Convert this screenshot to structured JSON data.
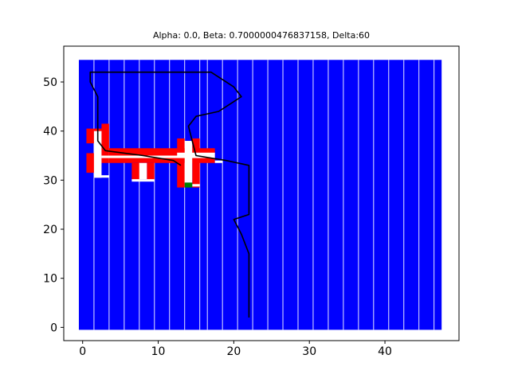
{
  "chart_data": {
    "type": "heatmap",
    "title": "Alpha: 0.0, Beta: 0.7000000476837158, Delta:60",
    "xlabel": "",
    "ylabel": "",
    "xlim": [
      -2.5,
      49.8
    ],
    "ylim": [
      -2.7,
      57.3
    ],
    "xticks": [
      0,
      10,
      20,
      30,
      40
    ],
    "yticks": [
      0,
      10,
      20,
      30,
      40,
      50
    ],
    "grid": false,
    "colors": {
      "free": "#0000ff",
      "obstacle": "#ff0000",
      "visited": "#ffffff",
      "goal": "#008000",
      "path": "#000000",
      "column_gap": "#ffffff"
    },
    "field": {
      "x_range": [
        -0.5,
        47.5
      ],
      "y_range": [
        -0.5,
        54.5
      ]
    },
    "column_gaps_x": [
      1.5,
      3.5,
      5.5,
      7.5,
      9.5,
      11.5,
      13.5,
      15.5,
      16.5,
      18.5,
      20.5,
      22.5,
      24.5,
      26.5,
      28.5,
      30.5,
      32.5,
      34.5,
      36.5,
      38.5,
      40.5,
      42.5,
      44.5,
      46.5
    ],
    "obstacles": [
      {
        "x": [
          0.5,
          1.5
        ],
        "y": [
          37.5,
          40.5
        ]
      },
      {
        "x": [
          0.5,
          1.5
        ],
        "y": [
          31.5,
          35.5
        ]
      },
      {
        "x": [
          1.5,
          2.5
        ],
        "y": [
          30.5,
          40.5
        ]
      },
      {
        "x": [
          2.5,
          3.5
        ],
        "y": [
          33.5,
          41.5
        ]
      },
      {
        "x": [
          3.5,
          17.5
        ],
        "y": [
          33.5,
          36.5
        ]
      },
      {
        "x": [
          6.5,
          7.5
        ],
        "y": [
          30.0,
          33.5
        ]
      },
      {
        "x": [
          8.5,
          9.5
        ],
        "y": [
          30.0,
          33.5
        ]
      },
      {
        "x": [
          12.5,
          13.5
        ],
        "y": [
          28.5,
          38.5
        ]
      },
      {
        "x": [
          14.5,
          15.5
        ],
        "y": [
          28.5,
          38.5
        ]
      }
    ],
    "visited_cells": [
      {
        "x": [
          1.5,
          2.5
        ],
        "y": [
          30.5,
          40.0
        ]
      },
      {
        "x": [
          1.5,
          3.5
        ],
        "y": [
          30.5,
          31.0
        ]
      },
      {
        "x": [
          6.5,
          9.5
        ],
        "y": [
          29.7,
          30.2
        ]
      },
      {
        "x": [
          7.5,
          8.5
        ],
        "y": [
          30.2,
          33.5
        ]
      },
      {
        "x": [
          2.5,
          17.5
        ],
        "y": [
          34.5,
          35.0
        ]
      },
      {
        "x": [
          13.5,
          14.5
        ],
        "y": [
          29.5,
          38.0
        ]
      },
      {
        "x": [
          12.5,
          17.5
        ],
        "y": [
          35.0,
          35.6
        ]
      },
      {
        "x": [
          14.5,
          15.5
        ],
        "y": [
          28.7,
          29.2
        ]
      },
      {
        "x": [
          17.5,
          18.5
        ],
        "y": [
          33.5,
          34.0
        ]
      }
    ],
    "goal_cell": {
      "x": [
        13.5,
        14.5
      ],
      "y": [
        28.5,
        29.5
      ]
    },
    "path": [
      [
        22.0,
        2.0
      ],
      [
        22.0,
        15.0
      ],
      [
        21.0,
        19.0
      ],
      [
        20.0,
        22.0
      ],
      [
        22.0,
        23.0
      ],
      [
        22.0,
        33.0
      ],
      [
        19.0,
        34.0
      ],
      [
        15.0,
        35.0
      ],
      [
        14.5,
        38.0
      ],
      [
        14.0,
        41.0
      ],
      [
        15.0,
        43.0
      ],
      [
        18.0,
        44.0
      ],
      [
        20.0,
        46.0
      ],
      [
        21.0,
        47.0
      ],
      [
        20.0,
        49.0
      ],
      [
        17.0,
        52.0
      ],
      [
        1.0,
        52.0
      ],
      [
        1.0,
        50.0
      ],
      [
        2.0,
        47.0
      ],
      [
        2.0,
        38.0
      ],
      [
        3.0,
        36.0
      ],
      [
        8.0,
        35.0
      ],
      [
        12.0,
        34.0
      ],
      [
        13.0,
        33.0
      ]
    ]
  }
}
